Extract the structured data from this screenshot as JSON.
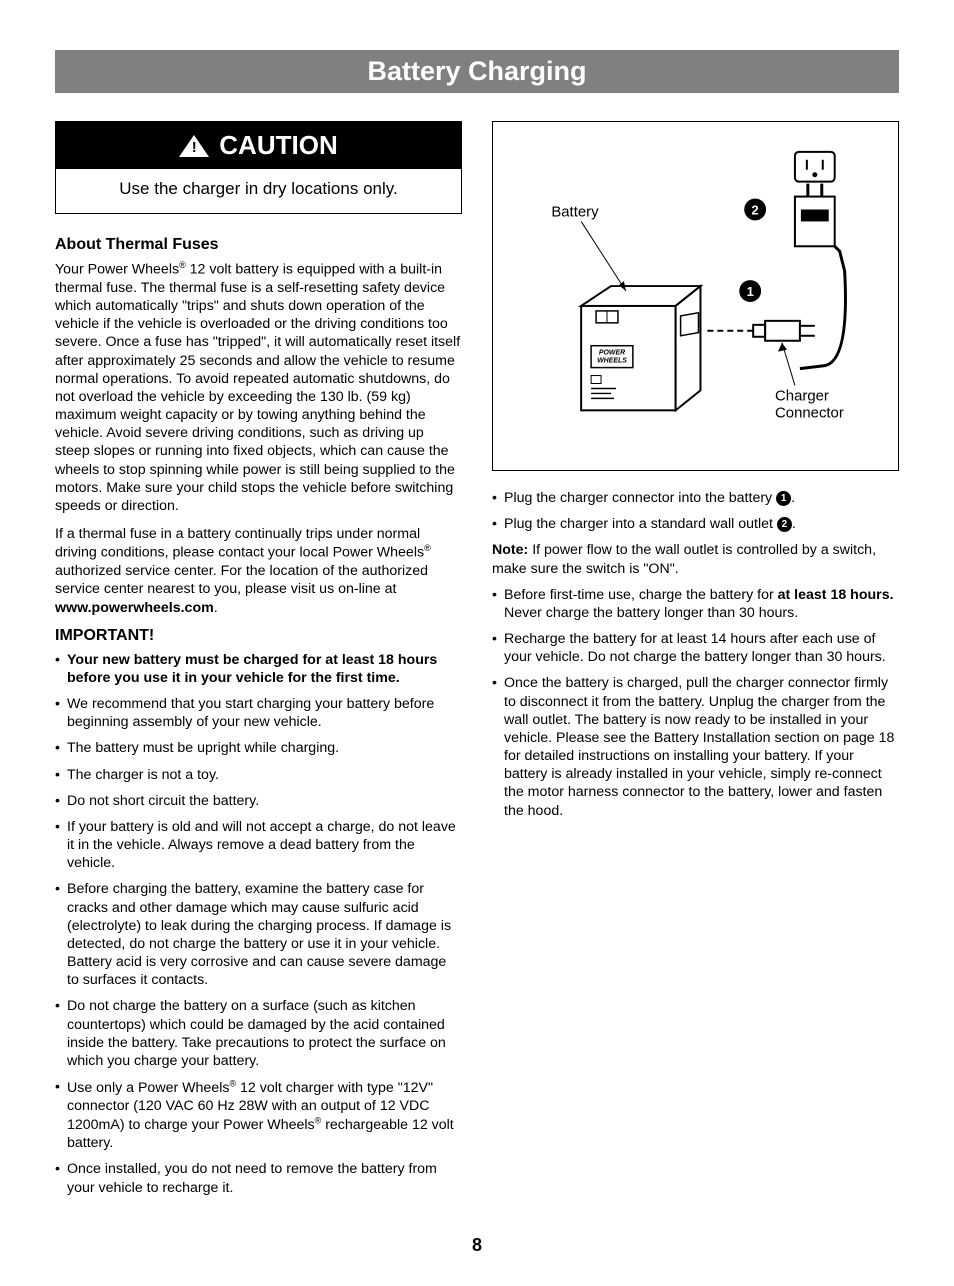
{
  "title": "Battery Charging",
  "page_number": "8",
  "caution": {
    "label": "CAUTION",
    "text": "Use the charger in dry locations only."
  },
  "left": {
    "heading1": "About Thermal Fuses",
    "para1_a": "Your Power Wheels",
    "para1_b": " 12 volt battery is equipped with a built-in thermal fuse. The thermal fuse is a self-resetting safety device which automatically \"trips\" and shuts down operation of the vehicle if the vehicle is overloaded or the driving conditions too severe. Once a fuse has \"tripped\", it will automatically reset itself after approximately 25 seconds and allow the vehicle to resume normal operations. To avoid repeated automatic shutdowns, do not overload the vehicle by exceeding the 130 lb. (59 kg) maximum weight capacity or by towing anything behind the vehicle. Avoid severe driving conditions, such as driving up steep slopes or running into fixed objects, which can cause the wheels to stop spinning while power is still being supplied to the motors. Make sure your child stops the vehicle before switching speeds or direction.",
    "para2_a": "If a thermal fuse in a battery continually trips under normal driving conditions, please contact your local Power Wheels",
    "para2_b": " authorized service center. For the location of the authorized service center nearest to you, please visit us on-line at ",
    "para2_url": "www.powerwheels.com",
    "para2_c": ".",
    "heading2": "IMPORTANT!",
    "items": [
      {
        "bold": "Your new battery must be charged for at least 18 hours before you use it in your vehicle for the first time.",
        "rest": ""
      },
      {
        "bold": "",
        "rest": "We recommend that you start charging your battery before beginning assembly of your new vehicle."
      },
      {
        "bold": "",
        "rest": "The battery must be upright while charging."
      },
      {
        "bold": "",
        "rest": "The charger is not a toy."
      },
      {
        "bold": "",
        "rest": "Do not short circuit the battery."
      },
      {
        "bold": "",
        "rest": "If your battery is old and will not accept a charge, do not leave it in the vehicle. Always remove a dead battery from the vehicle."
      },
      {
        "bold": "",
        "rest": "Before charging the battery, examine the battery case for cracks and other damage which may cause sulfuric acid (electrolyte) to leak during the charging process. If damage is detected, do not charge the battery or use it in your vehicle. Battery acid is very corrosive and can cause severe damage to surfaces it contacts."
      },
      {
        "bold": "",
        "rest": "Do not charge the battery on a surface (such as kitchen countertops) which could be damaged by the acid contained inside the battery. Take precautions to protect the surface on which you charge your battery."
      },
      {
        "bold": "",
        "rest_html": "Use only a Power Wheels<span class=\"registered\">®</span> 12 volt charger with type \"12V\" connector (120 VAC 60 Hz 28W with an output of 12 VDC 1200mA) to charge your Power Wheels<span class=\"registered\">®</span> rechargeable 12 volt battery."
      },
      {
        "bold": "",
        "rest": "Once installed, you do not need to remove the battery from your vehicle to recharge it."
      }
    ]
  },
  "right": {
    "diagram": {
      "battery_label": "Battery",
      "charger_label": "Charger Connector",
      "callout_1": "1",
      "callout_2": "2"
    },
    "bullets_top": [
      {
        "text": "Plug the charger connector into the battery ",
        "num": "1",
        "tail": "."
      },
      {
        "text": "Plug the charger into a standard wall outlet ",
        "num": "2",
        "tail": "."
      }
    ],
    "note_label": "Note:",
    "note_text": " If power flow to the wall outlet is controlled by a switch, make sure the switch is \"ON\".",
    "bullets_bottom": [
      {
        "pre": "Before first-time use, charge the battery for ",
        "bold": "at least 18 hours.",
        "post": " Never charge the battery longer than 30 hours."
      },
      {
        "pre": "Recharge the battery for at least 14 hours after each use of your vehicle. Do not charge the battery longer than 30 hours.",
        "bold": "",
        "post": ""
      },
      {
        "pre": "Once the battery is charged, pull the charger connector firmly to disconnect it from the battery. Unplug the charger from the wall outlet. The battery is now ready to be installed in your vehicle. Please see the Battery Installation section on page 18 for detailed instructions on installing your battery. If your battery is already installed in your vehicle, simply re-connect the motor harness connector to the battery, lower and fasten the hood.",
        "bold": "",
        "post": ""
      }
    ]
  },
  "colors": {
    "title_bar_bg": "#808080",
    "caution_bg": "#000000",
    "text": "#000000"
  }
}
